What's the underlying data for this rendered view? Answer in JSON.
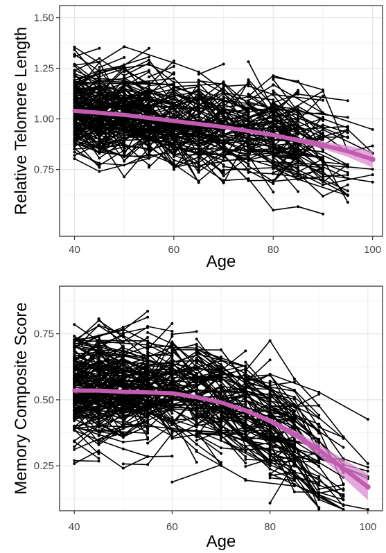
{
  "chart_data": [
    {
      "type": "line",
      "subtype": "spaghetti-with-smoothed-trend",
      "title": "",
      "xlabel": "Age",
      "ylabel": "Relative Telomere Length",
      "xlim": [
        37,
        102
      ],
      "ylim": [
        0.42,
        1.56
      ],
      "x_ticks": [
        40,
        60,
        80,
        100
      ],
      "y_ticks": [
        0.75,
        1.0,
        1.25,
        1.5
      ],
      "x_tick_labels": [
        "40",
        "60",
        "80",
        "100"
      ],
      "y_tick_labels": [
        "0.75",
        "1.00",
        "1.25",
        "1.50"
      ],
      "grid": true,
      "individual_lines_color": "#000000",
      "trend_color": "#c35bb1",
      "ribbon_color": "#d98cd0",
      "series": [
        {
          "trend": {
            "x": [
              40,
              45,
              50,
              55,
              60,
              65,
              70,
              75,
              80,
              85,
              90,
              95,
              100
            ],
            "y": [
              1.04,
              1.03,
              1.02,
              1.005,
              0.99,
              0.975,
              0.96,
              0.94,
              0.92,
              0.895,
              0.87,
              0.84,
              0.8
            ],
            "ci_half_width": [
              0.008,
              0.006,
              0.005,
              0.005,
              0.005,
              0.005,
              0.006,
              0.007,
              0.008,
              0.012,
              0.018,
              0.028,
              0.04
            ]
          }
        }
      ]
    },
    {
      "type": "line",
      "subtype": "spaghetti-with-smoothed-trend",
      "title": "",
      "xlabel": "Age",
      "ylabel": "Memory Composite Score",
      "xlim": [
        37,
        103
      ],
      "ylim": [
        0.08,
        0.93
      ],
      "x_ticks": [
        40,
        60,
        80,
        100
      ],
      "y_ticks": [
        0.25,
        0.5,
        0.75
      ],
      "x_tick_labels": [
        "40",
        "60",
        "80",
        "100"
      ],
      "y_tick_labels": [
        "0.25",
        "0.50",
        "0.75"
      ],
      "grid": true,
      "individual_lines_color": "#000000",
      "trend_color": "#c35bb1",
      "ribbon_color": "#d98cd0",
      "series": [
        {
          "trend": {
            "x": [
              40,
              45,
              50,
              55,
              60,
              65,
              70,
              75,
              80,
              85,
              90,
              95,
              100
            ],
            "y": [
              0.535,
              0.535,
              0.53,
              0.528,
              0.525,
              0.51,
              0.49,
              0.46,
              0.42,
              0.37,
              0.31,
              0.24,
              0.17
            ],
            "ci_half_width": [
              0.008,
              0.006,
              0.005,
              0.005,
              0.005,
              0.005,
              0.006,
              0.007,
              0.01,
              0.014,
              0.022,
              0.035,
              0.05
            ]
          }
        }
      ]
    }
  ]
}
